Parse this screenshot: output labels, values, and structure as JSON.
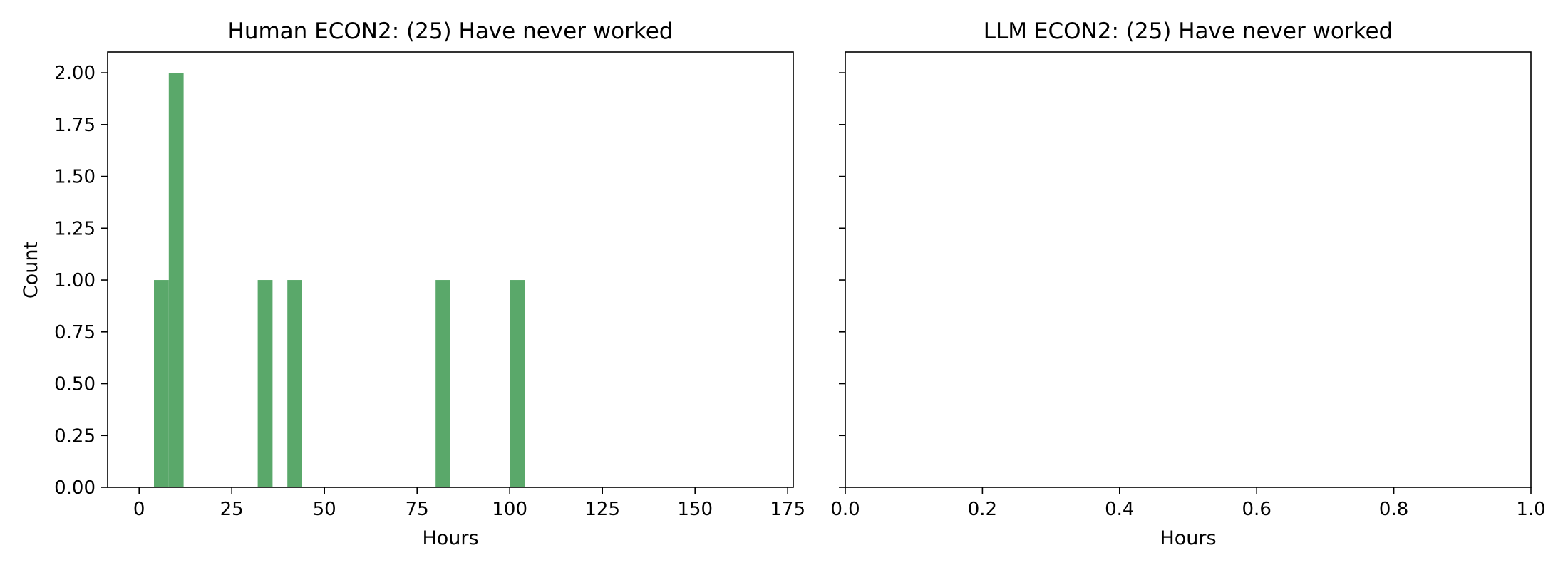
{
  "chart_data": [
    {
      "type": "bar",
      "title": "Human ECON2: (25) Have never worked",
      "xlabel": "Hours",
      "ylabel": "Count",
      "xlim": [
        -8.5,
        176.5
      ],
      "ylim": [
        0,
        2.1
      ],
      "xticks": [
        0,
        25,
        50,
        75,
        100,
        125,
        150,
        175
      ],
      "yticks": [
        0.0,
        0.25,
        0.5,
        0.75,
        1.0,
        1.25,
        1.5,
        1.75,
        2.0
      ],
      "ytick_labels": [
        "0.00",
        "0.25",
        "0.50",
        "0.75",
        "1.00",
        "1.25",
        "1.50",
        "1.75",
        "2.00"
      ],
      "bin_width": 4,
      "bars": [
        {
          "x": 4,
          "value": 1
        },
        {
          "x": 8,
          "value": 2
        },
        {
          "x": 32,
          "value": 1
        },
        {
          "x": 40,
          "value": 1
        },
        {
          "x": 80,
          "value": 1
        },
        {
          "x": 100,
          "value": 1
        }
      ],
      "color": "#5aa86a"
    },
    {
      "type": "bar",
      "title": "LLM ECON2: (25) Have never worked",
      "xlabel": "Hours",
      "ylabel": "",
      "xlim": [
        0,
        1
      ],
      "ylim": [
        0,
        2.1
      ],
      "xticks": [
        0.0,
        0.2,
        0.4,
        0.6,
        0.8,
        1.0
      ],
      "xtick_labels": [
        "0.0",
        "0.2",
        "0.4",
        "0.6",
        "0.8",
        "1.0"
      ],
      "yticks": [
        0.0,
        0.25,
        0.5,
        0.75,
        1.0,
        1.25,
        1.5,
        1.75,
        2.0
      ],
      "bars": [],
      "shared_y": true
    }
  ]
}
